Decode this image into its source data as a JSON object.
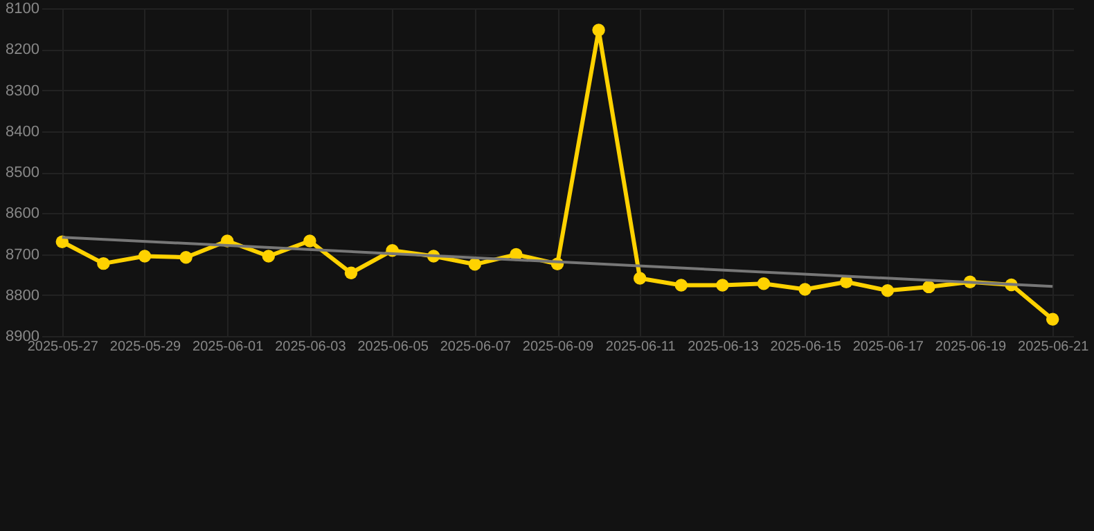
{
  "chart_data": {
    "type": "line",
    "categories": [
      "2025-05-27",
      null,
      "2025-05-29",
      null,
      "2025-06-01",
      null,
      "2025-06-03",
      null,
      "2025-06-05",
      null,
      "2025-06-07",
      null,
      "2025-06-09",
      null,
      "2025-06-11",
      null,
      "2025-06-13",
      null,
      "2025-06-15",
      null,
      "2025-06-17",
      null,
      "2025-06-19",
      null,
      "2025-06-21"
    ],
    "series": [
      {
        "color": "#ffd200",
        "marker": "circle",
        "values": [
          8670,
          8723,
          8705,
          8708,
          8668,
          8705,
          8668,
          8746,
          8691,
          8705,
          8725,
          8701,
          8724,
          8153,
          8759,
          8776,
          8776,
          8772,
          8786,
          8768,
          8789,
          8780,
          8768,
          8775,
          8859
        ]
      },
      {
        "color": "#777777",
        "marker": "none",
        "values": [
          8659,
          null,
          null,
          null,
          null,
          null,
          null,
          null,
          null,
          null,
          null,
          null,
          null,
          null,
          null,
          null,
          null,
          null,
          null,
          null,
          null,
          null,
          null,
          null,
          8779
        ]
      }
    ],
    "ylim": [
      8900,
      8100
    ],
    "yticks": [
      8100,
      8200,
      8300,
      8400,
      8500,
      8600,
      8700,
      8800,
      8900
    ],
    "grid": true
  }
}
